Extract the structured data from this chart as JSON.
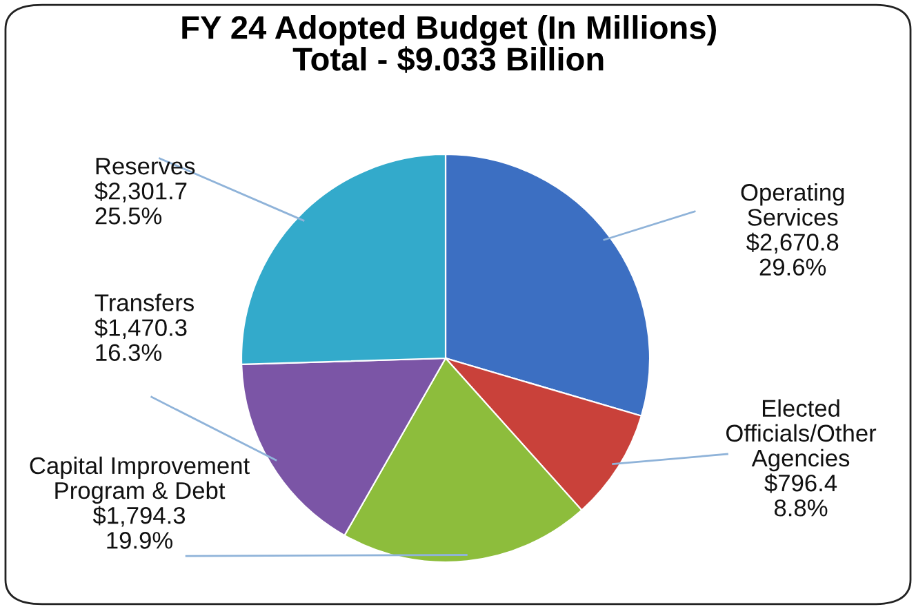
{
  "chart_data": {
    "type": "pie",
    "title": "FY 24 Adopted Budget (In Millions)\nTotal - $9.033 Billion",
    "categories": [
      "Operating\nServices",
      "Elected\nOfficials/Other\nAgencies",
      "Capital Improvement\nProgram & Debt",
      "Transfers",
      "Reserves"
    ],
    "values": [
      2670.8,
      796.4,
      1794.3,
      1470.3,
      2301.7
    ],
    "value_labels": [
      "$2,670.8\n29.6%",
      "$796.4\n8.8%",
      "$1,794.3\n19.9%",
      "$1,470.3\n16.3%",
      "$2,301.7\n25.5%"
    ],
    "colors": [
      "#3c6fc2",
      "#c9413a",
      "#8dbd3c",
      "#7b55a6",
      "#33aacb"
    ],
    "legend": false
  }
}
